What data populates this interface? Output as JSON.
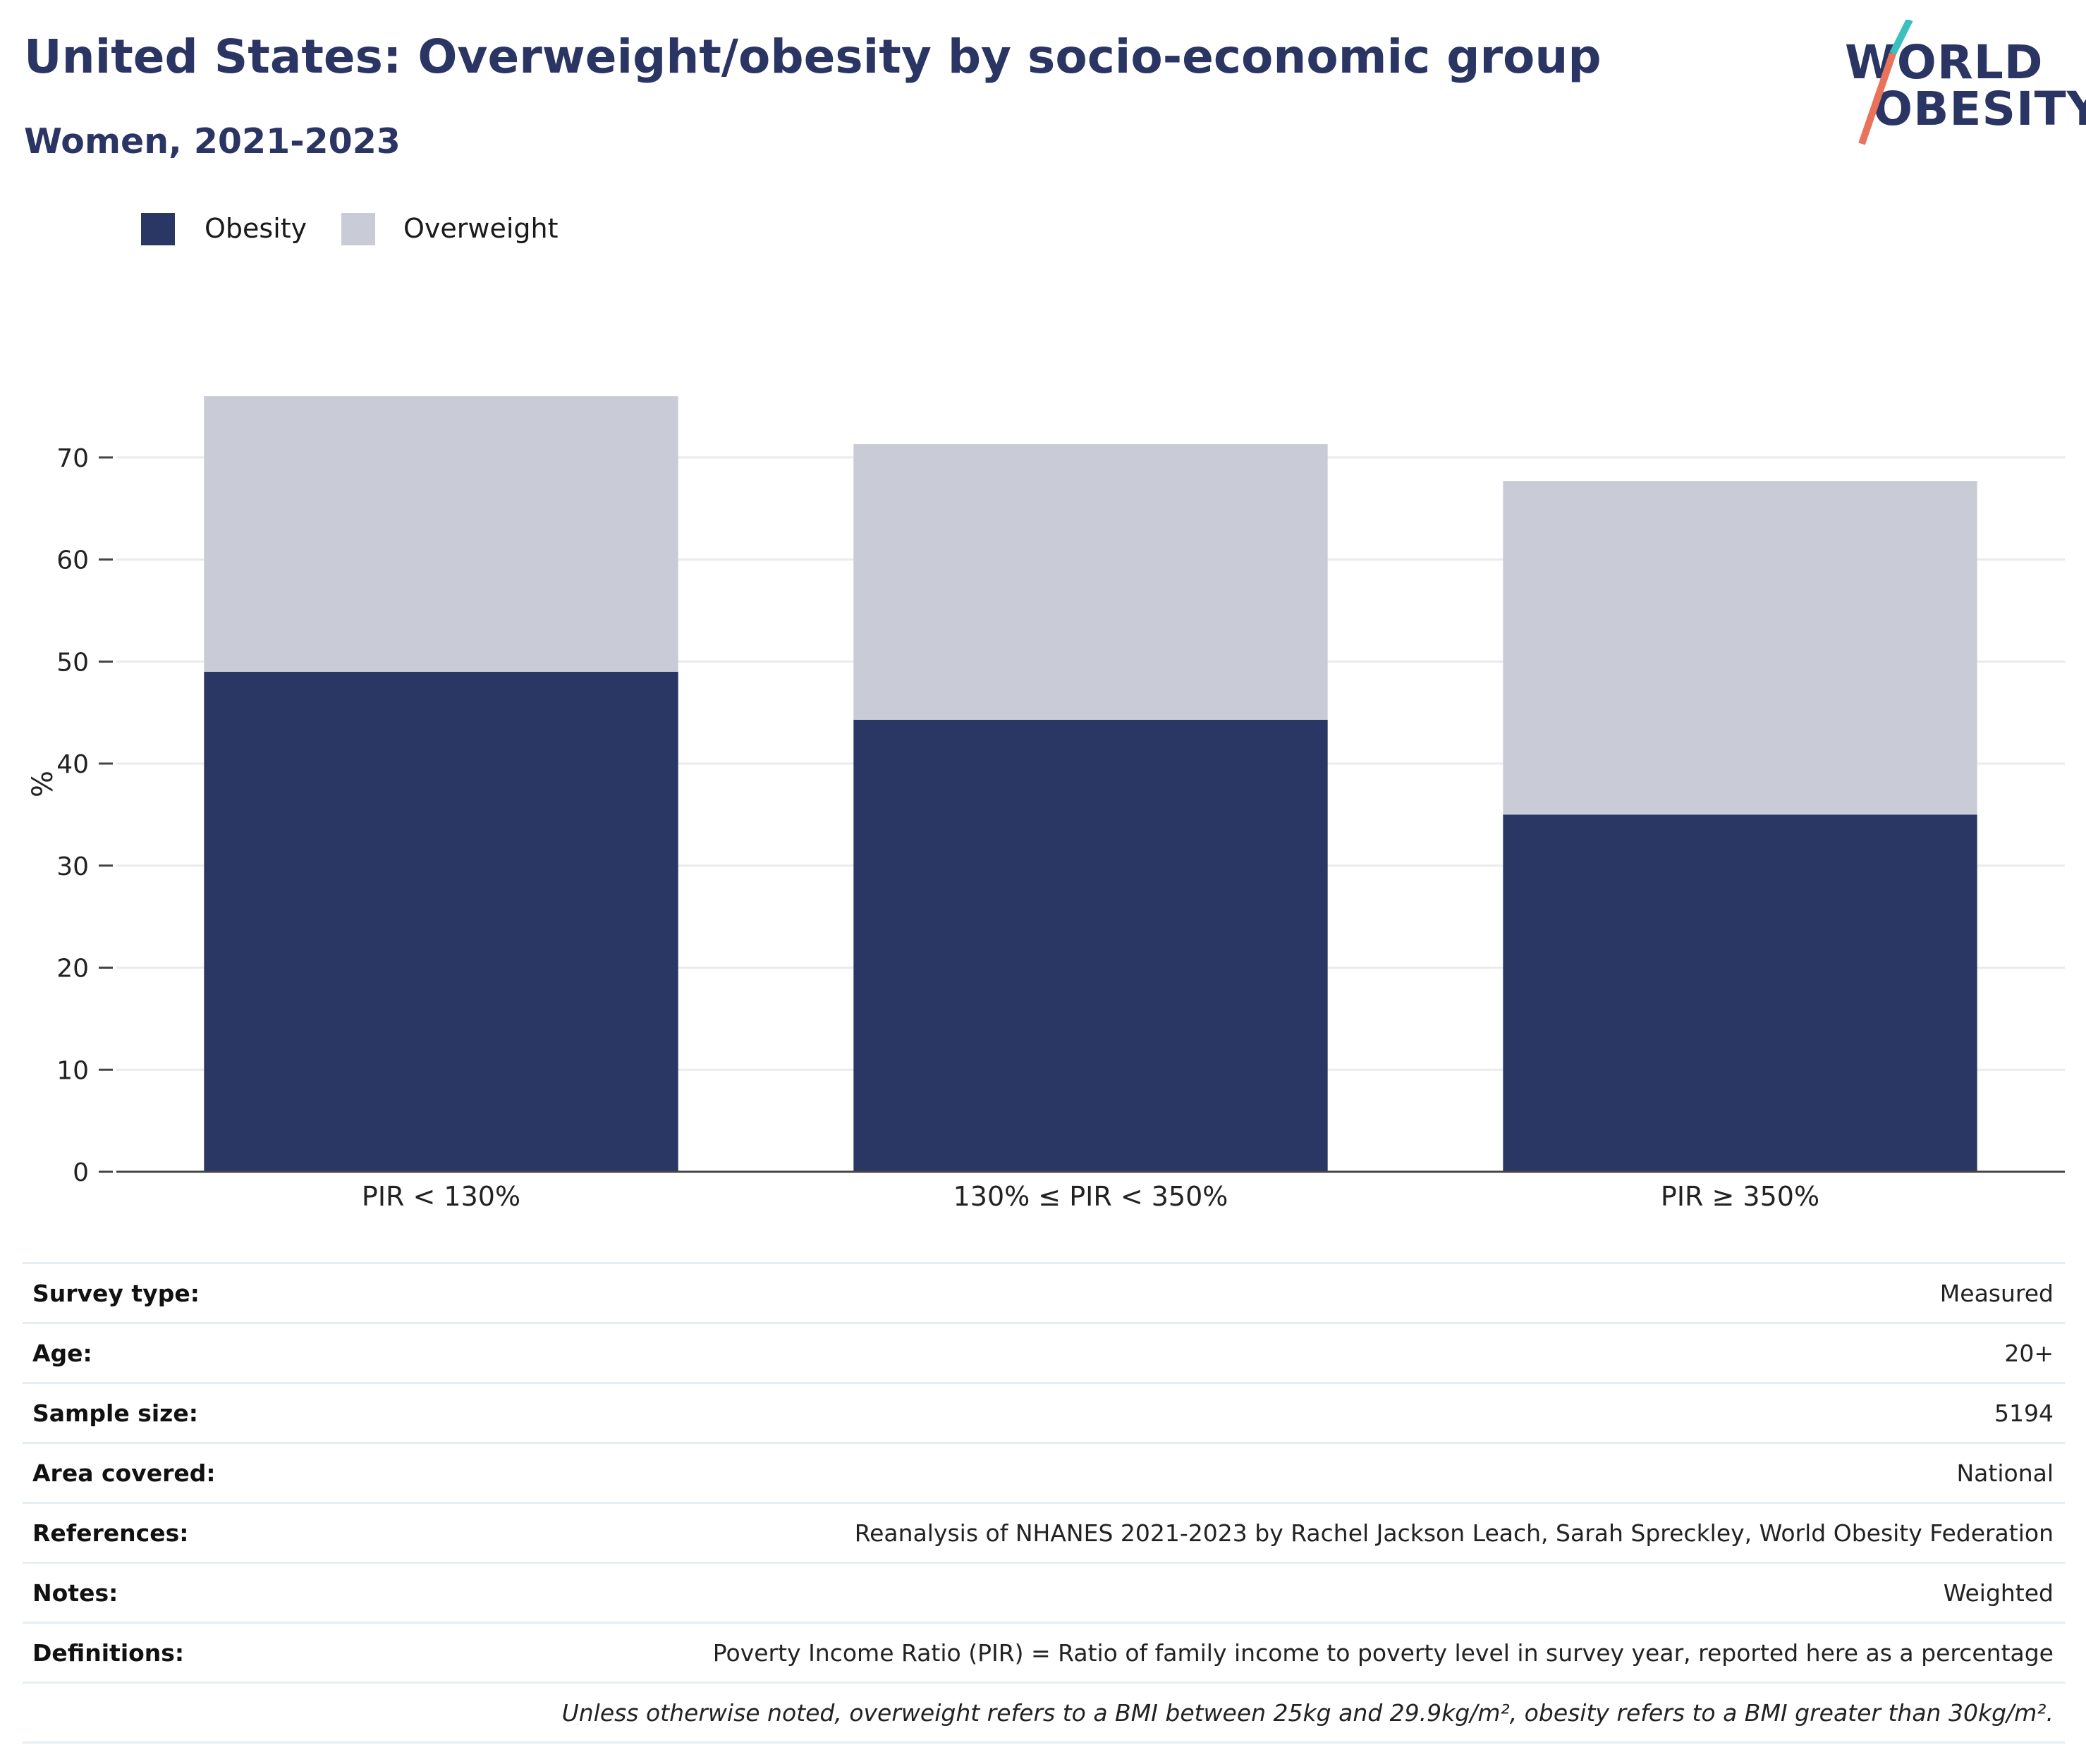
{
  "header": {
    "title": "United States: Overweight/obesity by socio-economic group",
    "subtitle": "Women, 2021-2023"
  },
  "logo": {
    "line1": "WORLD",
    "line2": "OBESITY",
    "colors": {
      "text": "#2a3563",
      "teal": "#3bbfbf",
      "coral": "#e8735a"
    }
  },
  "colors": {
    "obesity": "#2a3663",
    "overweight": "#c9cbd6",
    "grid": "#ebebeb",
    "axis": "#444444"
  },
  "chart_data": {
    "type": "bar",
    "stacked": true,
    "categories": [
      "PIR < 130%",
      "130% ≤ PIR < 350%",
      "PIR ≥ 350%"
    ],
    "series": [
      {
        "name": "Obesity",
        "values": [
          49.0,
          44.3,
          35.0
        ]
      },
      {
        "name": "Overweight",
        "values": [
          27.0,
          27.0,
          32.7
        ]
      }
    ],
    "ylabel": "%",
    "xlabel": "",
    "ylim": [
      0,
      76
    ],
    "yticks": [
      0,
      10,
      20,
      30,
      40,
      50,
      60,
      70
    ],
    "grid": true,
    "legend": "top-left"
  },
  "info": {
    "rows": [
      {
        "label": "Survey type:",
        "value": "Measured"
      },
      {
        "label": "Age:",
        "value": "20+"
      },
      {
        "label": "Sample size:",
        "value": "5194"
      },
      {
        "label": "Area covered:",
        "value": "National"
      },
      {
        "label": "References:",
        "value": "Reanalysis of NHANES 2021-2023 by Rachel Jackson Leach, Sarah Spreckley, World Obesity Federation"
      },
      {
        "label": "Notes:",
        "value": "Weighted"
      },
      {
        "label": "Definitions:",
        "value": "Poverty Income Ratio (PIR) = Ratio of family income to poverty level in survey year, reported here as a percentage"
      }
    ],
    "footnote": "Unless otherwise noted, overweight refers to a BMI between 25kg and 29.9kg/m², obesity refers to a BMI greater than 30kg/m²."
  }
}
